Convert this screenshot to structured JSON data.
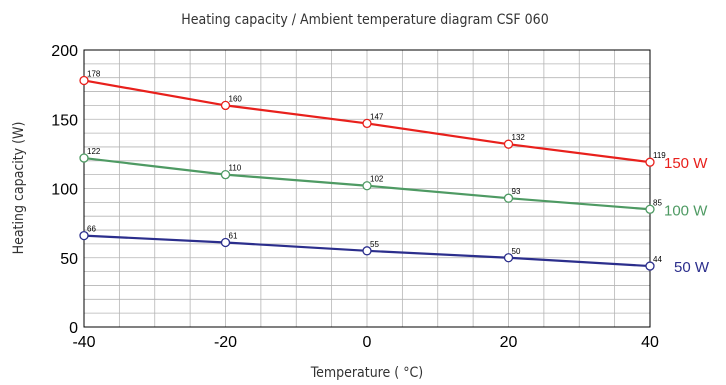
{
  "chart_data": {
    "type": "line",
    "title": "Heating capacity / Ambient temperature diagram CSF 060",
    "xlabel": "Temperature ( °C)",
    "ylabel": "Heating capacity (W)",
    "xlim": [
      -40,
      40
    ],
    "ylim": [
      0,
      200
    ],
    "x_ticks": [
      "-40",
      "-20",
      "0",
      "20",
      "40"
    ],
    "y_ticks": [
      "0",
      "50",
      "100",
      "150",
      "200"
    ],
    "grid": true,
    "x": [
      -40,
      -20,
      0,
      20,
      40
    ],
    "series": [
      {
        "name": "150 W",
        "color": "#e8201c",
        "values": [
          178,
          160,
          147,
          132,
          119
        ]
      },
      {
        "name": "100 W",
        "color": "#4e9a63",
        "values": [
          122,
          110,
          102,
          93,
          85
        ]
      },
      {
        "name": "50 W",
        "color": "#2b2e8c",
        "values": [
          66,
          61,
          55,
          50,
          44
        ]
      }
    ]
  }
}
